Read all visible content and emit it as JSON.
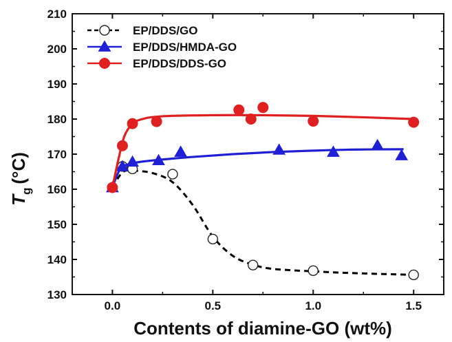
{
  "chart_data": {
    "type": "scatter",
    "xlabel": "Contents of diamine-GO (wt%)",
    "ylabel_main": "T",
    "ylabel_sub": "g",
    "ylabel_unit": "(°C)",
    "xlim": [
      -0.2,
      1.65
    ],
    "ylim": [
      130,
      210
    ],
    "xticks": [
      0.0,
      0.5,
      1.0,
      1.5
    ],
    "xtick_labels": [
      "0.0",
      "0.5",
      "1.0",
      "1.5"
    ],
    "yticks": [
      130,
      140,
      150,
      160,
      170,
      180,
      190,
      200,
      210
    ],
    "ytick_labels": [
      "130",
      "140",
      "150",
      "160",
      "170",
      "180",
      "190",
      "200",
      "210"
    ],
    "legend_position": "top-left",
    "series": [
      {
        "name": "EP/DDS/GO",
        "marker": "open-circle",
        "line": "dashed",
        "color": "#000000",
        "points": [
          [
            0.0,
            160.5
          ],
          [
            0.05,
            166.5
          ],
          [
            0.1,
            165.8
          ],
          [
            0.3,
            164.3
          ],
          [
            0.5,
            145.8
          ],
          [
            0.7,
            138.4
          ],
          [
            1.0,
            136.8
          ],
          [
            1.5,
            135.6
          ]
        ],
        "fit": [
          [
            0.0,
            160.5
          ],
          [
            0.05,
            164.8
          ],
          [
            0.1,
            165.3
          ],
          [
            0.2,
            164.6
          ],
          [
            0.3,
            162.0
          ],
          [
            0.4,
            155.5
          ],
          [
            0.5,
            146.5
          ],
          [
            0.6,
            141.0
          ],
          [
            0.7,
            138.5
          ],
          [
            0.8,
            137.3
          ],
          [
            1.0,
            136.6
          ],
          [
            1.2,
            136.1
          ],
          [
            1.5,
            135.6
          ]
        ]
      },
      {
        "name": "EP/DDS/HMDA-GO",
        "marker": "filled-triangle",
        "line": "solid",
        "color": "#1f1fd6",
        "points": [
          [
            0.0,
            160.5
          ],
          [
            0.05,
            166.5
          ],
          [
            0.1,
            167.8
          ],
          [
            0.23,
            168.2
          ],
          [
            0.34,
            170.6
          ],
          [
            0.83,
            171.2
          ],
          [
            1.1,
            170.6
          ],
          [
            1.32,
            172.5
          ],
          [
            1.44,
            169.6
          ]
        ],
        "fit": [
          [
            0.0,
            160.5
          ],
          [
            0.04,
            165.8
          ],
          [
            0.1,
            167.4
          ],
          [
            0.2,
            168.2
          ],
          [
            0.4,
            169.2
          ],
          [
            0.6,
            170.0
          ],
          [
            0.8,
            170.6
          ],
          [
            1.0,
            171.0
          ],
          [
            1.2,
            171.3
          ],
          [
            1.45,
            171.4
          ]
        ]
      },
      {
        "name": "EP/DDS/DDS-GO",
        "marker": "filled-circle",
        "line": "solid",
        "color": "#e02020",
        "points": [
          [
            0.0,
            160.5
          ],
          [
            0.05,
            172.4
          ],
          [
            0.1,
            178.7
          ],
          [
            0.22,
            179.3
          ],
          [
            0.63,
            182.6
          ],
          [
            0.69,
            180.0
          ],
          [
            0.75,
            183.3
          ],
          [
            1.0,
            179.4
          ],
          [
            1.5,
            179.1
          ]
        ],
        "fit": [
          [
            0.0,
            160.5
          ],
          [
            0.03,
            168.5
          ],
          [
            0.06,
            175.2
          ],
          [
            0.1,
            178.6
          ],
          [
            0.15,
            180.0
          ],
          [
            0.25,
            180.8
          ],
          [
            0.5,
            181.1
          ],
          [
            0.75,
            181.1
          ],
          [
            1.0,
            180.9
          ],
          [
            1.25,
            180.5
          ],
          [
            1.5,
            180.0
          ]
        ]
      }
    ]
  }
}
